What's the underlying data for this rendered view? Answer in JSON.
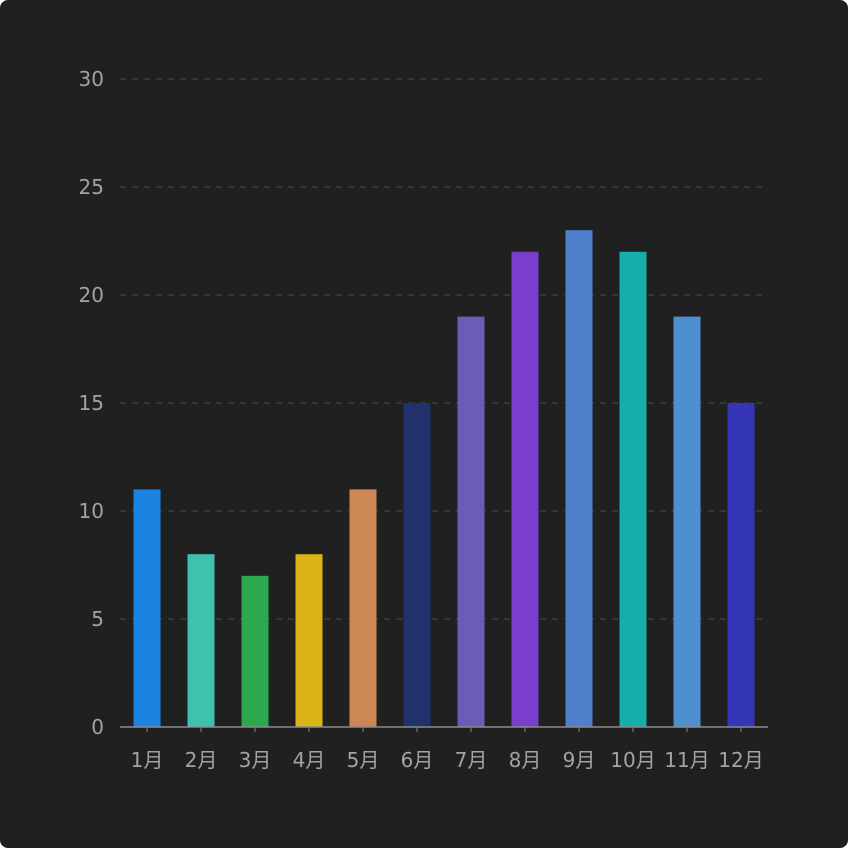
{
  "chart_data": {
    "type": "bar",
    "categories": [
      "1月",
      "2月",
      "3月",
      "4月",
      "5月",
      "6月",
      "7月",
      "8月",
      "9月",
      "10月",
      "11月",
      "12月"
    ],
    "values": [
      11,
      8,
      7,
      8,
      11,
      15,
      19,
      22,
      23,
      22,
      19,
      15
    ],
    "bar_colors": [
      "#1c84e0",
      "#3fc1b0",
      "#2ca84f",
      "#dbb417",
      "#cc8754",
      "#22306b",
      "#6b5cb8",
      "#7a3ecc",
      "#4f80cc",
      "#14aeab",
      "#4f8fcf",
      "#3535b8"
    ],
    "ylim": [
      0,
      30
    ],
    "yticks": [
      0,
      5,
      10,
      15,
      20,
      25,
      30
    ],
    "grid": true,
    "title": "",
    "xlabel": "",
    "ylabel": ""
  },
  "theme": {
    "background": "#202020",
    "text_color": "#a3a3a3",
    "grid_color": "#4a4a4a"
  }
}
